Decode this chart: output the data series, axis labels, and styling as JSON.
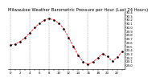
{
  "title": "Milwaukee Weather Barometric Pressure per Hour (Last 24 Hours)",
  "hours": [
    0,
    1,
    2,
    3,
    4,
    5,
    6,
    7,
    8,
    9,
    10,
    11,
    12,
    13,
    14,
    15,
    16,
    17,
    18,
    19,
    20,
    21,
    22,
    23
  ],
  "pressure": [
    29.52,
    29.55,
    29.62,
    29.72,
    29.85,
    29.98,
    30.1,
    30.18,
    30.22,
    30.18,
    30.1,
    29.95,
    29.72,
    29.48,
    29.25,
    29.08,
    29.02,
    29.08,
    29.18,
    29.3,
    29.22,
    29.1,
    29.2,
    29.35
  ],
  "ylim": [
    28.9,
    30.4
  ],
  "ytick_step": 0.1,
  "yticks": [
    29.0,
    29.1,
    29.2,
    29.3,
    29.4,
    29.5,
    29.6,
    29.7,
    29.8,
    29.9,
    30.0,
    30.1,
    30.2,
    30.3,
    30.4
  ],
  "ytick_labels": [
    "29.0",
    "29.1",
    "29.2",
    "29.3",
    "29.4",
    "29.5",
    "29.6",
    "29.7",
    "29.8",
    "29.9",
    "30.0",
    "30.1",
    "30.2",
    "30.3",
    "30.4"
  ],
  "line_color": "#ff0000",
  "dot_color": "#000000",
  "background_color": "#ffffff",
  "grid_color": "#999999",
  "title_color": "#000000",
  "title_fontsize": 3.8,
  "tick_fontsize": 2.8,
  "vgrid_positions": [
    0,
    4,
    8,
    12,
    16,
    20
  ]
}
